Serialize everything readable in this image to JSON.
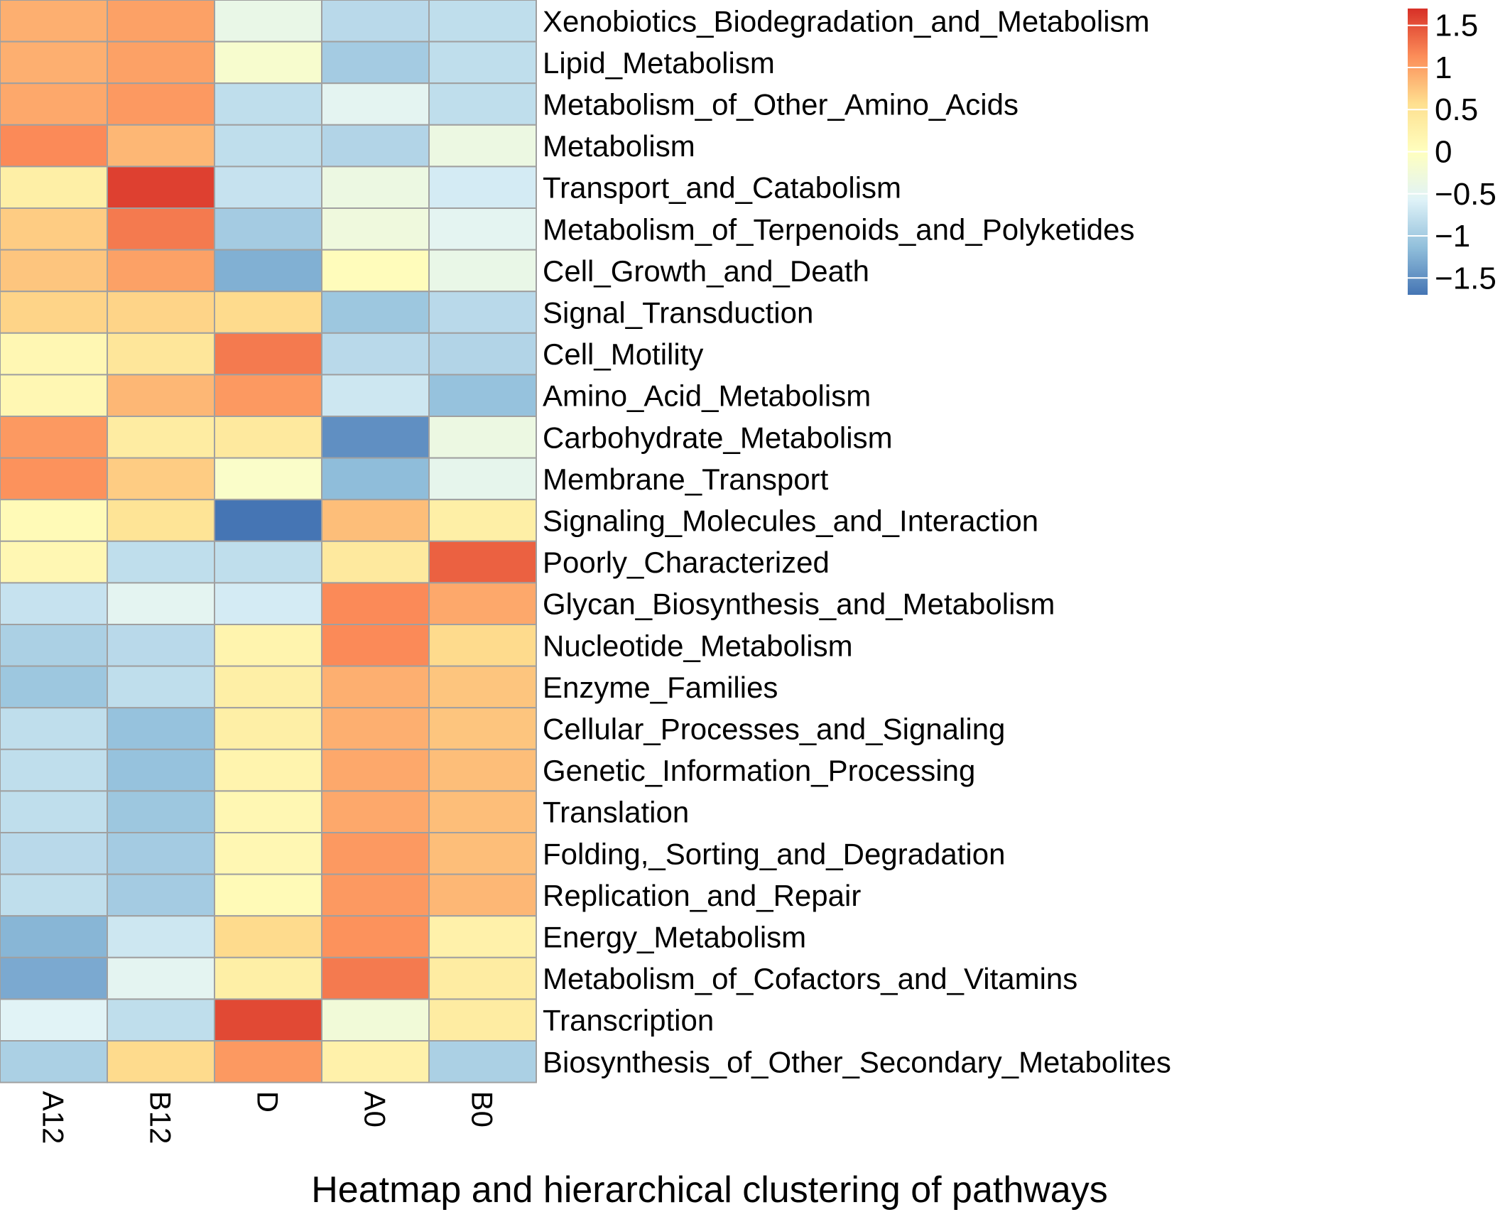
{
  "chart_data": {
    "type": "heatmap",
    "title": "Heatmap and hierarchical clustering of pathways",
    "columns": [
      "A12",
      "B12",
      "D",
      "A0",
      "B0"
    ],
    "rows": [
      "Xenobiotics_Biodegradation_and_Metabolism",
      "Lipid_Metabolism",
      "Metabolism_of_Other_Amino_Acids",
      "Metabolism",
      "Transport_and_Catabolism",
      "Metabolism_of_Terpenoids_and_Polyketides",
      "Cell_Growth_and_Death",
      "Signal_Transduction",
      "Cell_Motility",
      "Amino_Acid_Metabolism",
      "Carbohydrate_Metabolism",
      "Membrane_Transport",
      "Signaling_Molecules_and_Interaction",
      "Poorly_Characterized",
      "Glycan_Biosynthesis_and_Metabolism",
      "Nucleotide_Metabolism",
      "Enzyme_Families",
      "Cellular_Processes_and_Signaling",
      "Genetic_Information_Processing",
      "Translation",
      "Folding,_Sorting_and_Degradation",
      "Replication_and_Repair",
      "Energy_Metabolism",
      "Metabolism_of_Cofactors_and_Vitamins",
      "Transcription",
      "Biosynthesis_of_Other_Secondary_Metabolites"
    ],
    "values": [
      [
        0.9,
        1.0,
        -0.4,
        -0.85,
        -0.8
      ],
      [
        0.9,
        1.0,
        -0.15,
        -1.0,
        -0.8
      ],
      [
        0.95,
        1.05,
        -0.8,
        -0.5,
        -0.8
      ],
      [
        1.15,
        0.85,
        -0.8,
        -0.9,
        -0.35
      ],
      [
        0.3,
        1.6,
        -0.75,
        -0.35,
        -0.65
      ],
      [
        0.7,
        1.25,
        -1.0,
        -0.3,
        -0.5
      ],
      [
        0.75,
        1.0,
        -1.25,
        0.05,
        -0.4
      ],
      [
        0.65,
        0.65,
        0.6,
        -1.05,
        -0.85
      ],
      [
        0.15,
        0.45,
        1.25,
        -0.85,
        -0.9
      ],
      [
        0.15,
        0.85,
        1.05,
        -0.7,
        -1.1
      ],
      [
        1.05,
        0.35,
        0.4,
        -1.5,
        -0.35
      ],
      [
        1.1,
        0.7,
        -0.1,
        -1.15,
        -0.45
      ],
      [
        0.1,
        0.5,
        -1.7,
        0.8,
        0.3
      ],
      [
        0.15,
        -0.8,
        -0.8,
        0.4,
        1.4
      ],
      [
        -0.75,
        -0.5,
        -0.65,
        1.15,
        0.95
      ],
      [
        -0.95,
        -0.85,
        0.2,
        1.15,
        0.6
      ],
      [
        -1.05,
        -0.8,
        0.3,
        0.9,
        0.75
      ],
      [
        -0.8,
        -1.1,
        0.3,
        0.9,
        0.75
      ],
      [
        -0.8,
        -1.1,
        0.2,
        0.95,
        0.8
      ],
      [
        -0.8,
        -1.05,
        0.15,
        0.95,
        0.8
      ],
      [
        -0.85,
        -1.0,
        0.15,
        1.05,
        0.8
      ],
      [
        -0.8,
        -1.0,
        0.1,
        1.05,
        0.85
      ],
      [
        -1.2,
        -0.7,
        0.6,
        1.1,
        0.25
      ],
      [
        -1.3,
        -0.5,
        0.3,
        1.25,
        0.35
      ],
      [
        -0.55,
        -0.8,
        1.55,
        -0.25,
        0.35
      ],
      [
        -0.95,
        0.6,
        1.05,
        0.25,
        -0.95
      ]
    ],
    "legend": {
      "ticks": [
        1.5,
        1,
        0.5,
        0,
        -0.5,
        -1,
        -1.5
      ],
      "tick_labels": [
        "1.5",
        "1",
        "0.5",
        "0",
        "−0.5",
        "−1",
        "−1.5"
      ],
      "range": [
        -1.7,
        1.7
      ],
      "placement": "top-right"
    },
    "colors": {
      "low": "#4575b4",
      "mid_low": "#91bfdb",
      "mid_low_light": "#e0f3f8",
      "mid": "#ffffbf",
      "mid_high_light": "#fee090",
      "mid_high": "#fc8d59",
      "high": "#d73027",
      "cell_border": "#a0a0a0"
    }
  }
}
